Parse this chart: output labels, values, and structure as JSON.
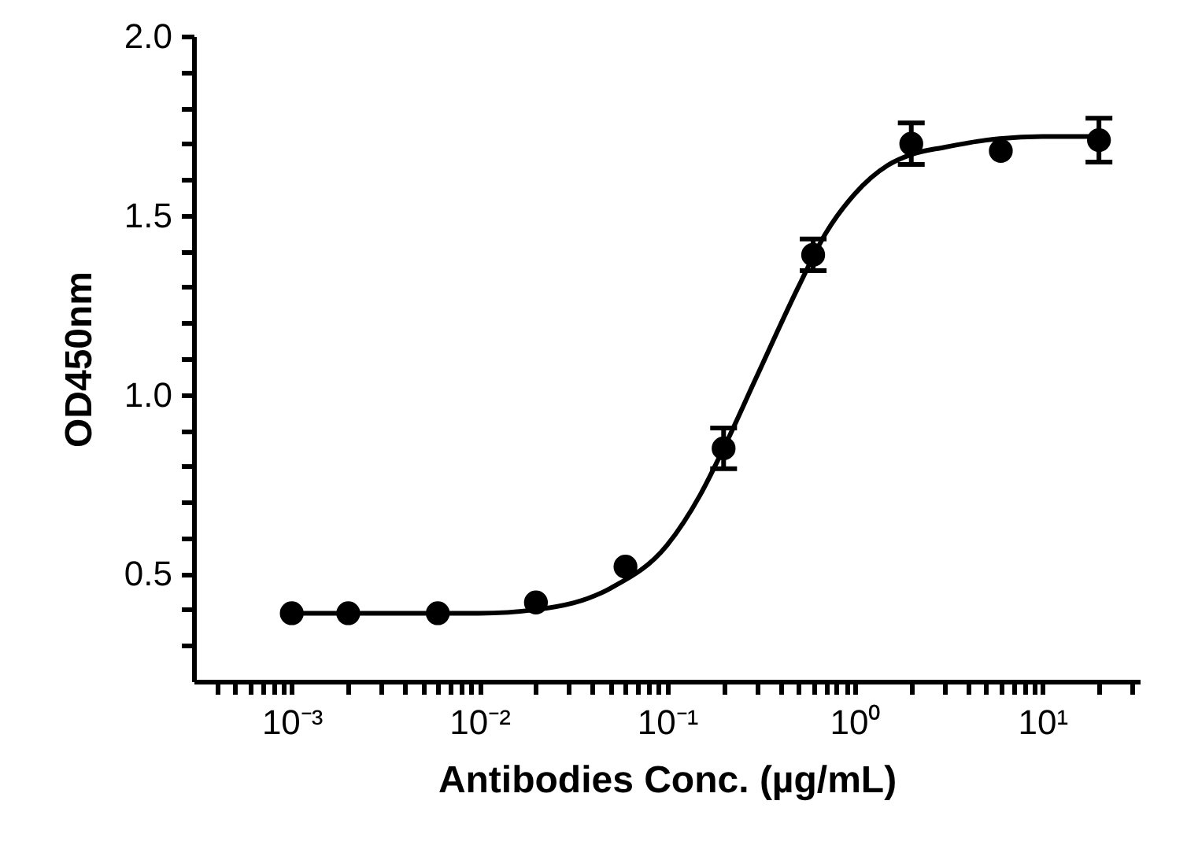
{
  "chart_data": {
    "type": "scatter",
    "xlabel": "Antibodies Conc. (µg/mL)",
    "ylabel": "OD450nm",
    "log": "x",
    "grid": false,
    "xlim": [
      0.0003,
      33
    ],
    "ylim": [
      0.2,
      2.0
    ],
    "xticks": [
      {
        "value": 0.0004,
        "label": null
      },
      {
        "value": 0.0005,
        "label": null
      },
      {
        "value": 0.0006,
        "label": null
      },
      {
        "value": 0.0007,
        "label": null
      },
      {
        "value": 0.0008,
        "label": null
      },
      {
        "value": 0.0009,
        "label": null
      },
      {
        "value": 0.001,
        "label": "10⁻³"
      },
      {
        "value": 0.002,
        "label": null
      },
      {
        "value": 0.003,
        "label": null
      },
      {
        "value": 0.004,
        "label": null
      },
      {
        "value": 0.005,
        "label": null
      },
      {
        "value": 0.006,
        "label": null
      },
      {
        "value": 0.007,
        "label": null
      },
      {
        "value": 0.008,
        "label": null
      },
      {
        "value": 0.009,
        "label": null
      },
      {
        "value": 0.01,
        "label": "10⁻²"
      },
      {
        "value": 0.02,
        "label": null
      },
      {
        "value": 0.03,
        "label": null
      },
      {
        "value": 0.04,
        "label": null
      },
      {
        "value": 0.05,
        "label": null
      },
      {
        "value": 0.06,
        "label": null
      },
      {
        "value": 0.07,
        "label": null
      },
      {
        "value": 0.08,
        "label": null
      },
      {
        "value": 0.09,
        "label": null
      },
      {
        "value": 0.1,
        "label": "10⁻¹"
      },
      {
        "value": 0.2,
        "label": null
      },
      {
        "value": 0.3,
        "label": null
      },
      {
        "value": 0.4,
        "label": null
      },
      {
        "value": 0.5,
        "label": null
      },
      {
        "value": 0.6,
        "label": null
      },
      {
        "value": 0.7,
        "label": null
      },
      {
        "value": 0.8,
        "label": null
      },
      {
        "value": 0.9,
        "label": null
      },
      {
        "value": 1,
        "label": "10⁰"
      },
      {
        "value": 2,
        "label": null
      },
      {
        "value": 3,
        "label": null
      },
      {
        "value": 4,
        "label": null
      },
      {
        "value": 5,
        "label": null
      },
      {
        "value": 6,
        "label": null
      },
      {
        "value": 7,
        "label": null
      },
      {
        "value": 8,
        "label": null
      },
      {
        "value": 9,
        "label": null
      },
      {
        "value": 10,
        "label": "10¹"
      },
      {
        "value": 20,
        "label": null
      },
      {
        "value": 30,
        "label": null
      }
    ],
    "yticks": [
      {
        "value": 0.3,
        "label": null
      },
      {
        "value": 0.4,
        "label": null
      },
      {
        "value": 0.5,
        "label": "0.5"
      },
      {
        "value": 0.6,
        "label": null
      },
      {
        "value": 0.7,
        "label": null
      },
      {
        "value": 0.8,
        "label": null
      },
      {
        "value": 0.9,
        "label": null
      },
      {
        "value": 1.0,
        "label": "1.0"
      },
      {
        "value": 1.1,
        "label": null
      },
      {
        "value": 1.2,
        "label": null
      },
      {
        "value": 1.3,
        "label": null
      },
      {
        "value": 1.4,
        "label": null
      },
      {
        "value": 1.5,
        "label": "1.5"
      },
      {
        "value": 1.6,
        "label": null
      },
      {
        "value": 1.7,
        "label": null
      },
      {
        "value": 1.8,
        "label": null
      },
      {
        "value": 1.9,
        "label": null
      },
      {
        "value": 2.0,
        "label": "2.0"
      }
    ],
    "series": [
      {
        "type": "line",
        "color": "#000000",
        "x": [
          0.001,
          0.01,
          0.02,
          0.05,
          0.1,
          0.15,
          0.2,
          0.3,
          0.5,
          0.7,
          1,
          1.5,
          2,
          3,
          5,
          10,
          20
        ],
        "values": [
          0.39,
          0.39,
          0.4,
          0.46,
          0.58,
          0.72,
          0.85,
          1.05,
          1.3,
          1.45,
          1.56,
          1.64,
          1.67,
          1.69,
          1.71,
          1.72,
          1.72
        ]
      },
      {
        "marker": "circle",
        "color": "#000000",
        "x": [
          0.001,
          0.002,
          0.006,
          0.02,
          0.06,
          0.2,
          0.6,
          2,
          6,
          20
        ],
        "values": [
          0.39,
          0.39,
          0.39,
          0.42,
          0.52,
          0.85,
          1.39,
          1.7,
          1.68,
          1.71
        ],
        "errors": [
          null,
          null,
          null,
          null,
          null,
          0.057,
          0.044,
          0.058,
          null,
          0.061
        ]
      }
    ]
  }
}
